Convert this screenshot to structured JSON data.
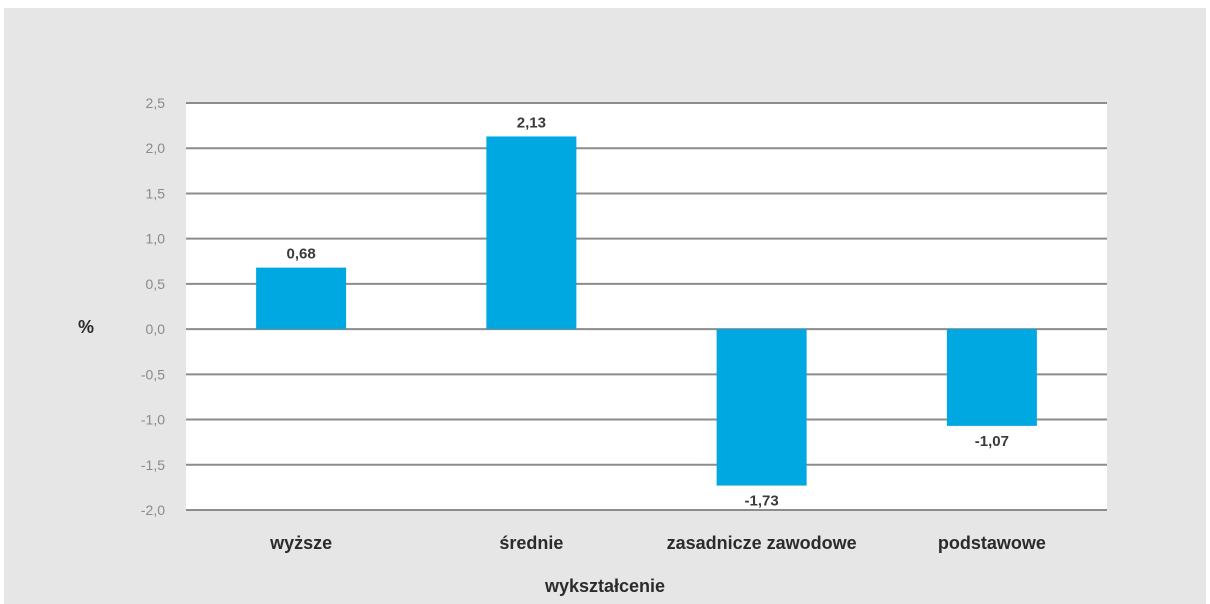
{
  "chart_data": {
    "type": "bar",
    "categories": [
      "wyższe",
      "średnie",
      "zasadnicze zawodowe",
      "podstawowe"
    ],
    "series": [
      {
        "values": [
          0.68,
          2.13,
          -1.73,
          -1.07
        ]
      }
    ],
    "data_labels": [
      "0,68",
      "2,13",
      "-1,73",
      "-1,07"
    ],
    "ylim": [
      -2.0,
      2.5
    ],
    "yticks": [
      2.5,
      2.0,
      1.5,
      1.0,
      0.5,
      0.0,
      -0.5,
      -1.0,
      -1.5,
      -2.0
    ],
    "ytick_labels": [
      "2,5",
      "2,0",
      "1,5",
      "1,0",
      "0,5",
      "0,0",
      "-0,5",
      "-1,0",
      "-1,5",
      "-2,0"
    ],
    "xlabel": "wykształcenie",
    "ylabel": "%",
    "grid": true,
    "bar_color": "#00a8e1",
    "plot_background": "#ffffff",
    "outer_background": "#e6e6e6"
  }
}
